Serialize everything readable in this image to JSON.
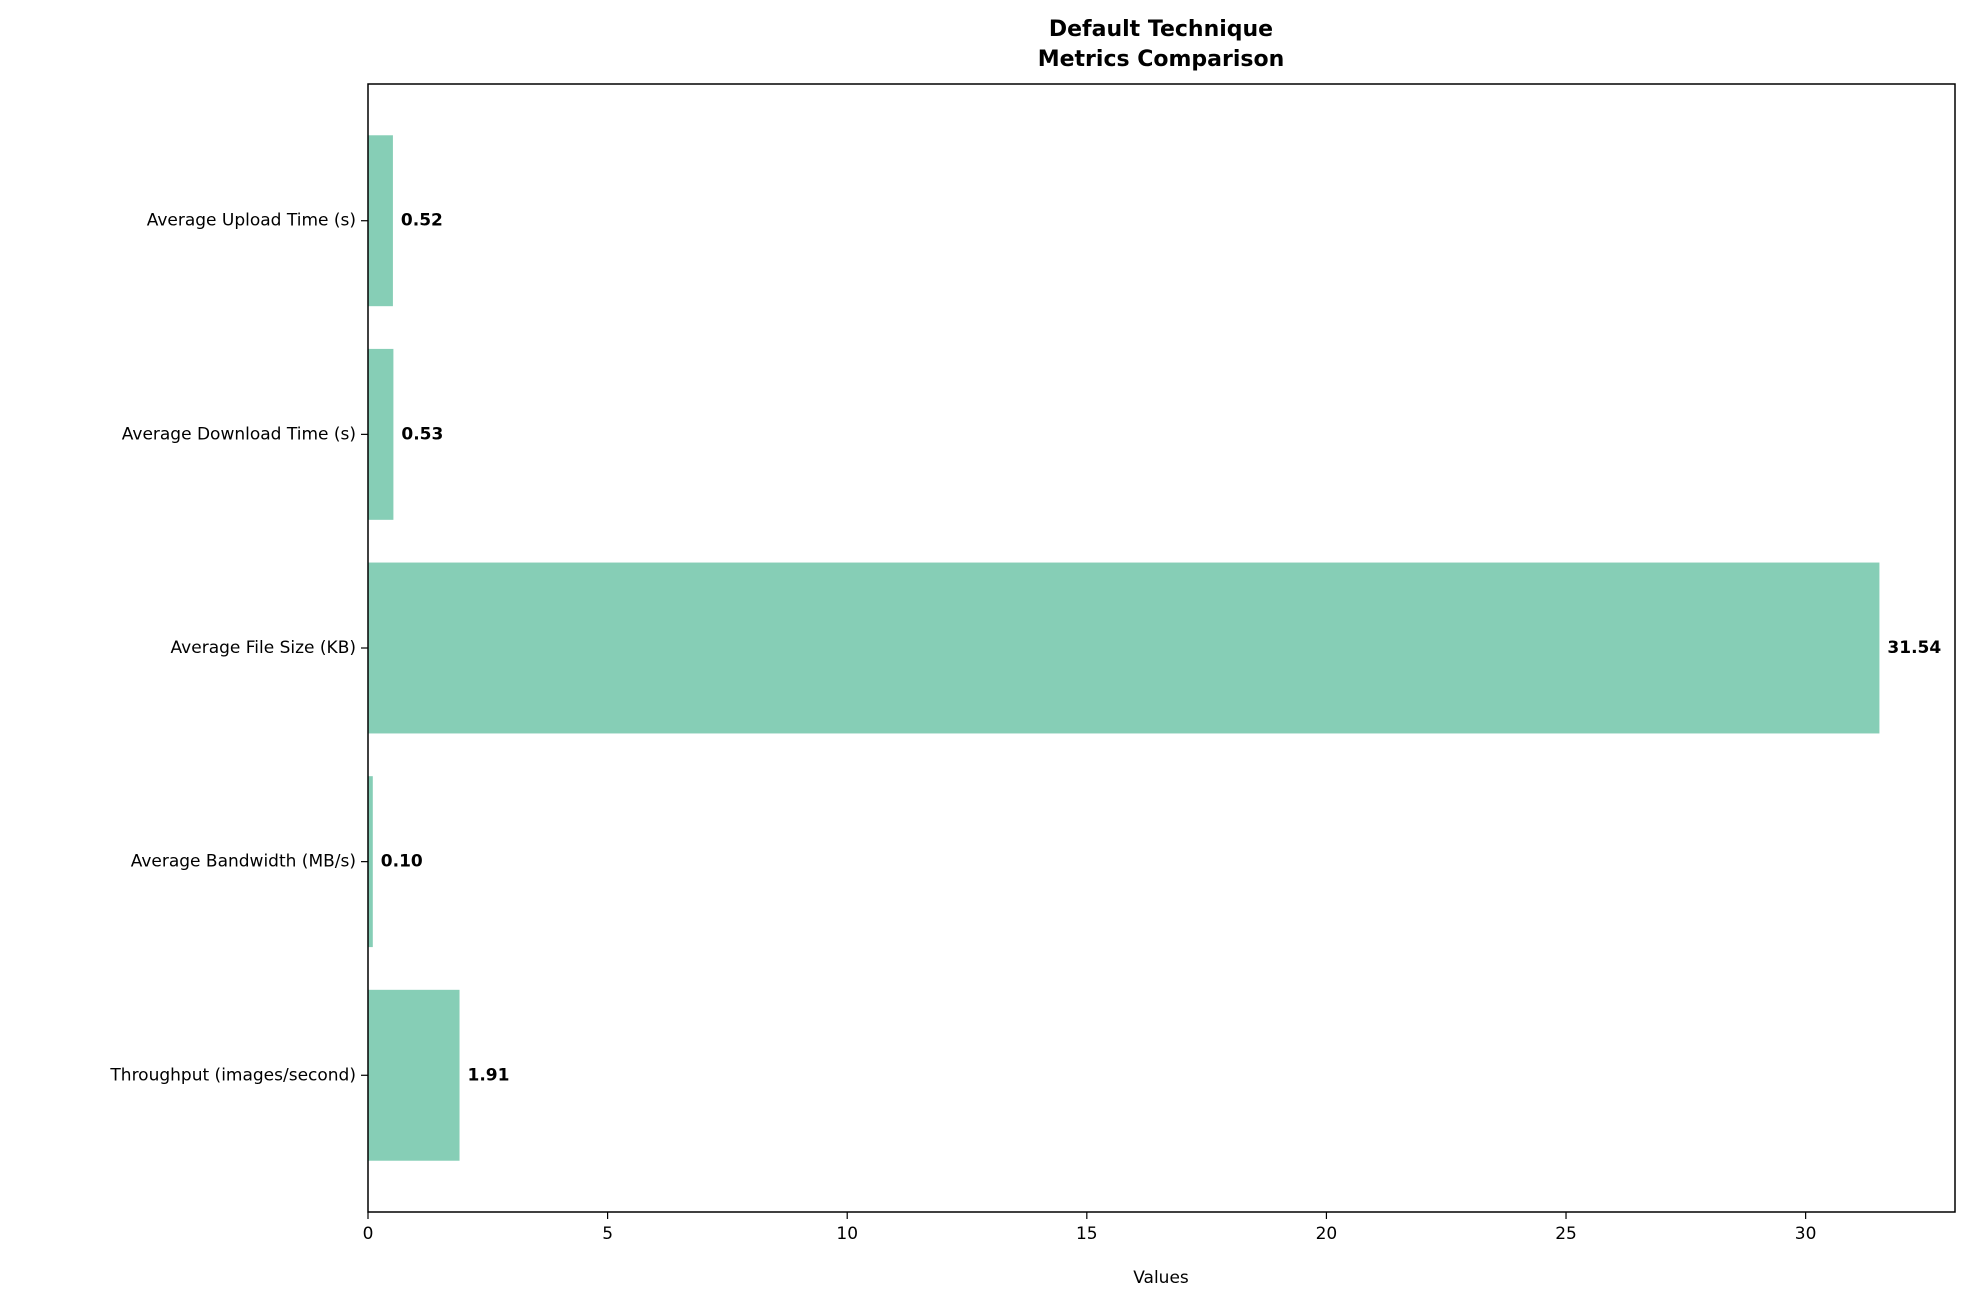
{
  "chart_data": {
    "type": "barh",
    "title": "Default Technique\nMetrics Comparison",
    "x_label": "Values",
    "categories": [
      "Average Upload Time (s)",
      "Average Download Time (s)",
      "Average File Size (KB)",
      "Average Bandwidth (MB/s)",
      "Throughput (images/second)"
    ],
    "values": [
      0.52,
      0.53,
      31.54,
      0.1,
      1.91
    ],
    "value_labels": [
      "0.52",
      "0.53",
      "31.54",
      "0.10",
      "1.91"
    ],
    "color": "#86ceb6",
    "xlim": [
      0,
      33.117
    ],
    "xticks": [
      0,
      5,
      10,
      15,
      20,
      25,
      30
    ],
    "grid": false
  }
}
